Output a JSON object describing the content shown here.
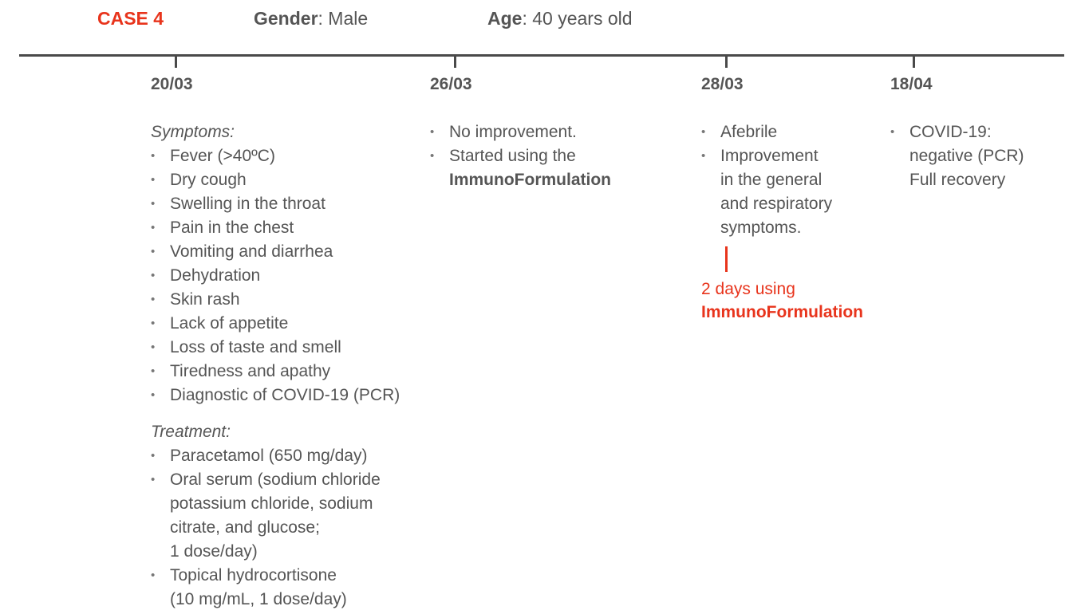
{
  "header": {
    "case_label": "CASE 4",
    "gender_label": "Gender",
    "gender_value": ": Male",
    "age_label": "Age",
    "age_value": ": 40 years old"
  },
  "timeline": [
    {
      "date": "20/03",
      "symptoms_heading": "Symptoms:",
      "symptoms": [
        "Fever (>40ºC)",
        "Dry cough",
        "Swelling in the throat",
        "Pain in the chest",
        "Vomiting and diarrhea",
        "Dehydration",
        "Skin rash",
        "Lack of appetite",
        "Loss of taste and smell",
        "Tiredness and apathy",
        "Diagnostic of COVID-19 (PCR)"
      ],
      "treatment_heading": "Treatment:",
      "treatment": [
        [
          "Paracetamol (650 mg/day)"
        ],
        [
          "Oral serum (sodium chloride",
          "potassium chloride, sodium",
          "citrate, and glucose;",
          "1 dose/day)"
        ],
        [
          "Topical hydrocortisone",
          "(10 mg/mL, 1 dose/day)"
        ]
      ]
    },
    {
      "date": "26/03",
      "items": [
        [
          "No improvement."
        ],
        [
          "Started using the"
        ]
      ],
      "bold_line": "ImmunoFormulation"
    },
    {
      "date": "28/03",
      "items": [
        [
          "Afebrile"
        ],
        [
          "Improvement",
          "in the general",
          "and respiratory",
          "symptoms."
        ]
      ],
      "note_line": "2 days using",
      "note_bold": "ImmunoFormulation"
    },
    {
      "date": "18/04",
      "items": [
        [
          "COVID-19:",
          "negative (PCR)",
          "Full recovery"
        ]
      ]
    }
  ],
  "colors": {
    "accent": "#e8341c",
    "text": "#555555",
    "axis": "#4a4a4a"
  }
}
